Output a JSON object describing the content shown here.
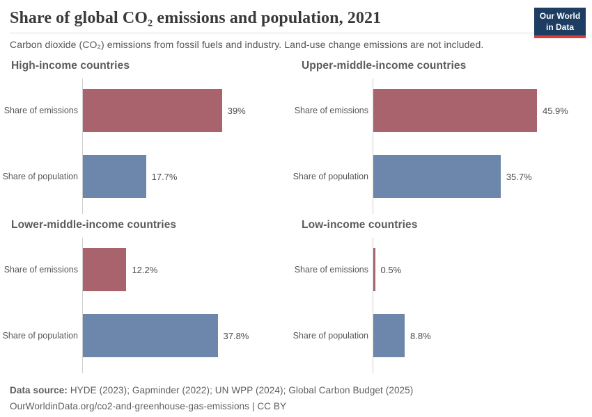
{
  "header": {
    "logo": {
      "line1": "Our World",
      "line2": "in Data"
    }
  },
  "chart_data": {
    "type": "bar",
    "orientation": "horizontal",
    "title": "Share of global CO₂ emissions and population, 2021",
    "subtitle": "Carbon dioxide (CO₂) emissions from fossil fuels and industry. Land-use change emissions are not included.",
    "categories": [
      "Share of emissions",
      "Share of population"
    ],
    "category_colors": [
      "#a9636d",
      "#6d87ac"
    ],
    "unit": "%",
    "xlim": [
      0,
      58.6
    ],
    "grid": false,
    "legend": "none",
    "value_labels": true,
    "panels": [
      {
        "title": "High-income countries",
        "values": [
          39,
          17.7
        ],
        "value_labels": [
          "39%",
          "17.7%"
        ]
      },
      {
        "title": "Upper-middle-income countries",
        "values": [
          45.9,
          35.7
        ],
        "value_labels": [
          "45.9%",
          "35.7%"
        ]
      },
      {
        "title": "Lower-middle-income countries",
        "values": [
          12.2,
          37.8
        ],
        "value_labels": [
          "12.2%",
          "37.8%"
        ]
      },
      {
        "title": "Low-income countries",
        "values": [
          0.5,
          8.8
        ],
        "value_labels": [
          "0.5%",
          "8.8%"
        ]
      }
    ],
    "colors": {
      "emissions": "#a9636d",
      "population": "#6d87ac",
      "axis": "#cfcfcf"
    }
  },
  "footer": {
    "datasource_label": "Data source:",
    "datasource_text": " HYDE (2023); Gapminder (2022); UN WPP (2024); Global Carbon Budget (2025)",
    "citation_line": "OurWorldinData.org/co2-and-greenhouse-gas-emissions | CC BY"
  }
}
